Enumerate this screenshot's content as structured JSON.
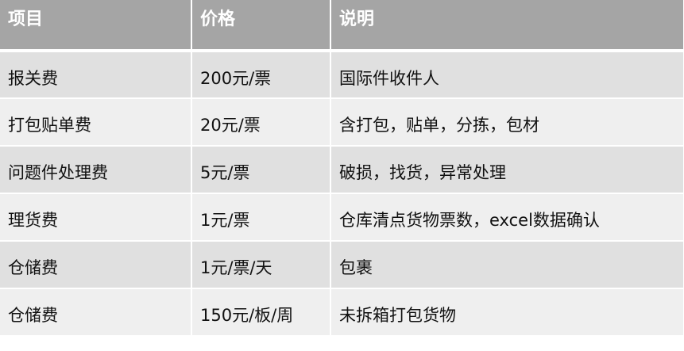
{
  "columns": [
    "项目",
    "价格",
    "说明"
  ],
  "rows": [
    [
      "报关费",
      "200元/票",
      "国际件收件人"
    ],
    [
      "打包贴单费",
      "20元/票",
      "含打包，贴单，分拣，包材"
    ],
    [
      "问题件处理费",
      "5元/票",
      "破损，找货，异常处理"
    ],
    [
      "理货费",
      "1元/票",
      "仓库清点货物票数，excel数据确认"
    ],
    [
      "仓储费",
      "1元/票/天",
      "包裹"
    ],
    [
      "仓储费",
      "150元/板/周",
      "未拆箱打包货物"
    ]
  ],
  "colors": {
    "header_bg": "#a5a5a5",
    "row_odd": "#e0e0e0",
    "row_even": "#efefef"
  }
}
